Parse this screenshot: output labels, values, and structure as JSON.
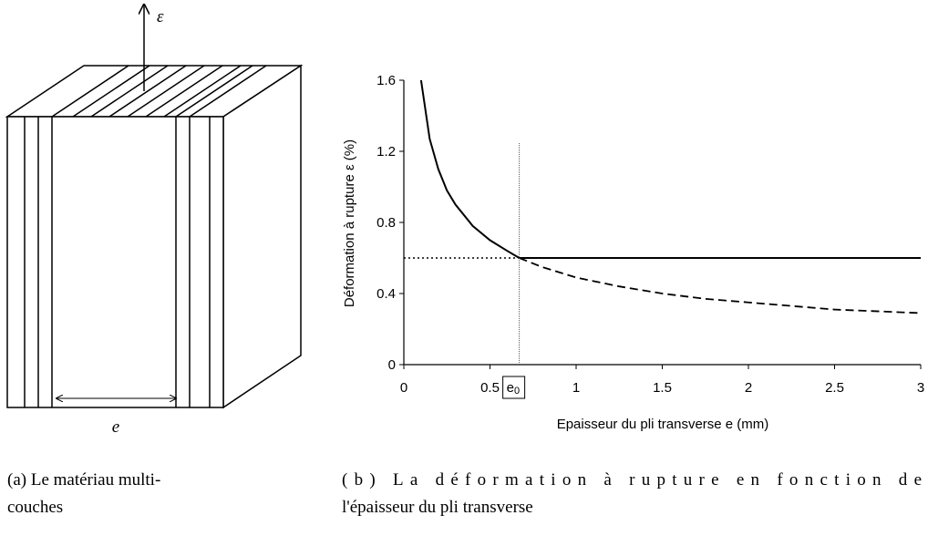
{
  "diagram": {
    "strain_symbol": "ε",
    "thickness_symbol": "e"
  },
  "chart_data": {
    "type": "line",
    "xlabel": "Epaisseur du pli transverse e (mm)",
    "ylabel": "Déformation à rupture ε (%)",
    "xlim": [
      0,
      3
    ],
    "ylim": [
      0,
      1.6
    ],
    "xticks": [
      0,
      0.5,
      1,
      1.5,
      2,
      2.5,
      3
    ],
    "yticks": [
      0,
      0.4,
      0.8,
      1.2,
      1.6
    ],
    "series": [
      {
        "color": "#000000",
        "style": "solid",
        "x": [
          0.1,
          0.15,
          0.2,
          0.25,
          0.3,
          0.4,
          0.5,
          0.6,
          0.67,
          3
        ],
        "values": [
          1.6,
          1.27,
          1.1,
          0.98,
          0.9,
          0.78,
          0.7,
          0.64,
          0.6,
          0.6
        ]
      },
      {
        "color": "#000000",
        "style": "dashed",
        "x": [
          0.67,
          0.8,
          1,
          1.25,
          1.5,
          1.75,
          2,
          2.5,
          3
        ],
        "values": [
          0.6,
          0.55,
          0.49,
          0.44,
          0.4,
          0.37,
          0.35,
          0.31,
          0.29
        ]
      },
      {
        "color": "#000000",
        "style": "dotted",
        "x": [
          0,
          0.67
        ],
        "values": [
          0.6,
          0.6
        ]
      },
      {
        "color": "#555555",
        "style": "thin",
        "x": [
          0.67,
          0.67
        ],
        "values": [
          0,
          1.25
        ]
      }
    ],
    "marker_label": {
      "x": 0.67,
      "text": "e",
      "subscript": "0"
    }
  },
  "captions": {
    "a": [
      "(a) Le matériau multi-",
      "couches"
    ],
    "b": [
      "(b) La déformation à rupture en fonction de",
      "l'épaisseur du pli transverse"
    ]
  }
}
